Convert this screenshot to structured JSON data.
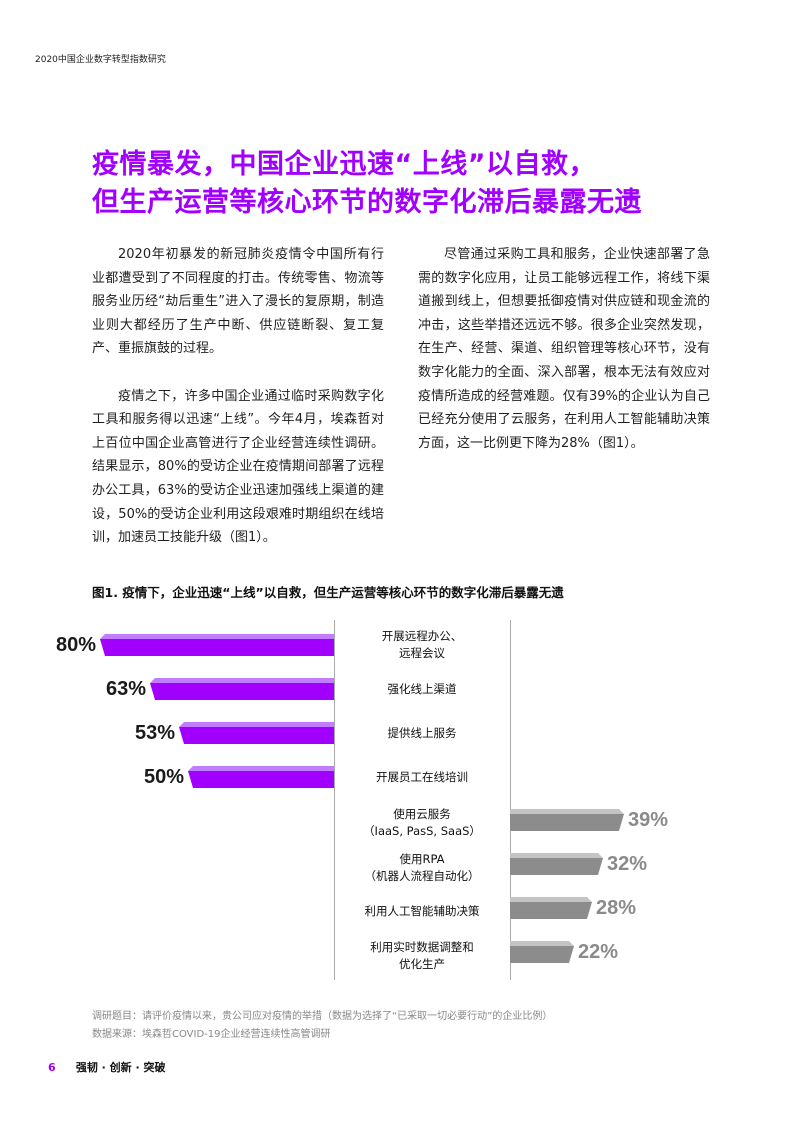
{
  "running_header": "2020中国企业数字转型指数研究",
  "title_lines": [
    "疫情暴发，中国企业迅速“上线”以自救，",
    "但生产运营等核心环节的数字化滞后暴露无遗"
  ],
  "left_column": [
    "2020年初暴发的新冠肺炎疫情令中国所有行业都遭受到了不同程度的打击。传统零售、物流等服务业历经“劫后重生”进入了漫长的复原期，制造业则大都经历了生产中断、供应链断裂、复工复产、重振旗鼓的过程。",
    "疫情之下，许多中国企业通过临时采购数字化工具和服务得以迅速“上线”。今年4月，埃森哲对上百位中国企业高管进行了企业经营连续性调研。结果显示，80%的受访企业在疫情期间部署了远程办公工具，63%的受访企业迅速加强线上渠道的建设，50%的受访企业利用这段艰难时期组织在线培训，加速员工技能升级（图1）。"
  ],
  "right_column": [
    "尽管通过采购工具和服务，企业快速部署了急需的数字化应用，让员工能够远程工作，将线下渠道搬到线上，但想要抵御疫情对供应链和现金流的冲击，这些举措还远远不够。很多企业突然发现，在生产、经营、渠道、组织管理等核心环节，没有数字化能力的全面、深入部署，根本无法有效应对疫情所造成的经营难题。仅有39%的企业认为自己已经充分使用了云服务，在利用人工智能辅助决策方面，这一比例更下降为28%（图1）。"
  ],
  "figure_title": "图1. 疫情下，企业迅速“上线”以自救，但生产运营等核心环节的数字化滞后暴露无遗",
  "chart_data": {
    "type": "bar",
    "orientation": "horizontal-diverging",
    "unit": "%",
    "left_series": {
      "color": "#a100ff",
      "items": [
        {
          "label_lines": [
            "开展远程办公、",
            "远程会议"
          ],
          "value": 80,
          "value_label": "80%"
        },
        {
          "label_lines": [
            "强化线上渠道"
          ],
          "value": 63,
          "value_label": "63%"
        },
        {
          "label_lines": [
            "提供线上服务"
          ],
          "value": 53,
          "value_label": "53%"
        },
        {
          "label_lines": [
            "开展员工在线培训"
          ],
          "value": 50,
          "value_label": "50%"
        }
      ]
    },
    "right_series": {
      "color": "#8c8c8c",
      "items": [
        {
          "label_lines": [
            "使用云服务",
            "（IaaS, PasS, SaaS）"
          ],
          "value": 39,
          "value_label": "39%"
        },
        {
          "label_lines": [
            "使用RPA",
            "（机器人流程自动化）"
          ],
          "value": 32,
          "value_label": "32%"
        },
        {
          "label_lines": [
            "利用人工智能辅助决策"
          ],
          "value": 28,
          "value_label": "28%"
        },
        {
          "label_lines": [
            "利用实时数据调整和",
            "优化生产"
          ],
          "value": 22,
          "value_label": "22%"
        }
      ]
    }
  },
  "notes": [
    "调研题目：请评价疫情以来，贵公司应对疫情的举措（数据为选择了“已采取一切必要行动”的企业比例）",
    "数据来源：埃森哲COVID-19企业经营连续性高管调研"
  ],
  "footer": {
    "page_number": "6",
    "tagline": "强韧 · 创新 · 突破"
  }
}
